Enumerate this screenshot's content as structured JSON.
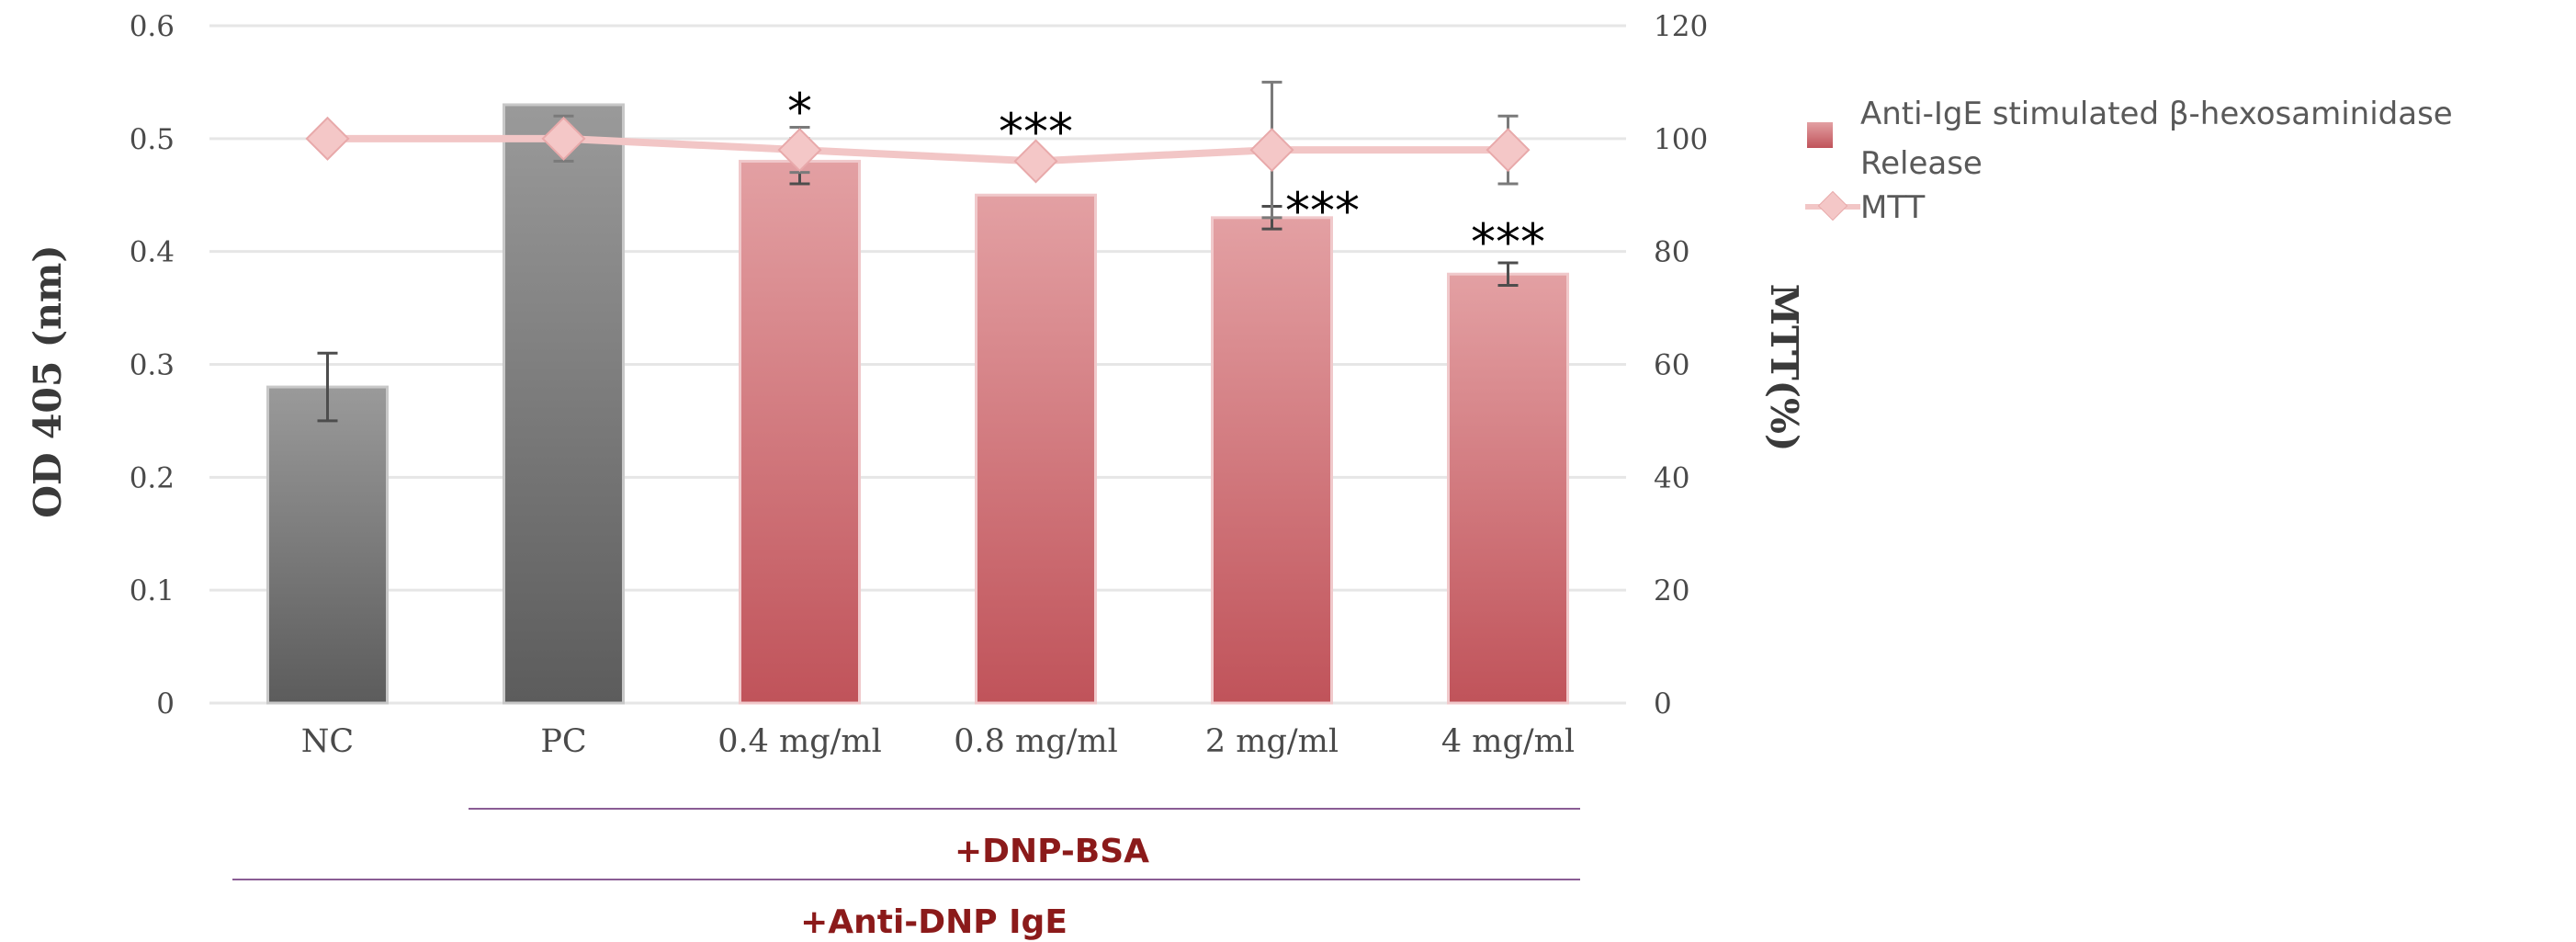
{
  "chart_data": {
    "type": "bar",
    "categories": [
      "NC",
      "PC",
      "0.4 mg/ml",
      "0.8 mg/ml",
      "2 mg/ml",
      "4 mg/ml"
    ],
    "series": [
      {
        "name": "Anti-IgE stimulated β-hexosaminidase Release",
        "type": "bar",
        "axis": "left",
        "values": [
          0.28,
          0.53,
          0.48,
          0.45,
          0.43,
          0.38
        ],
        "errors": [
          0.03,
          0.0,
          0.02,
          0.0,
          0.01,
          0.01
        ]
      },
      {
        "name": "MTT",
        "type": "line",
        "axis": "right",
        "values": [
          100,
          100,
          98,
          96,
          98,
          98
        ],
        "errors": [
          0,
          4,
          4,
          0,
          12,
          6
        ]
      }
    ],
    "ylabel": "OD 405 (nm)",
    "y2label": "MTT(%)",
    "ylim": [
      0,
      0.6
    ],
    "yticks": [
      0,
      0.1,
      0.2,
      0.3,
      0.4,
      0.5,
      0.6
    ],
    "ytick_labels": [
      "0",
      "0.1",
      "0.2",
      "0.3",
      "0.4",
      "0.5",
      "0.6"
    ],
    "y2lim": [
      0,
      120
    ],
    "y2ticks": [
      0,
      20,
      40,
      60,
      80,
      100,
      120
    ],
    "y2tick_labels": [
      "0",
      "20",
      "40",
      "60",
      "80",
      "100",
      "120"
    ],
    "significance": [
      "",
      "",
      "*",
      "***",
      "***",
      "***"
    ],
    "groups": [
      {
        "label": "+DNP-BSA",
        "from": 1,
        "to": 5
      },
      {
        "label": "+Anti-DNP IgE",
        "from": 0,
        "to": 5
      }
    ],
    "legend_lines": [
      "Anti-IgE stimulated β-hexosaminidase",
      "Release",
      "MTT"
    ],
    "legend": "right",
    "grid": true,
    "colors": {
      "grey_top": "#9a9a9a",
      "grey_bottom": "#5c5c5c",
      "red_top": "#e3a0a3",
      "red_bottom": "#c0535a",
      "line": "#f2c6c6",
      "marker": "#f4c7c7",
      "marker_stroke": "#e8a9aa",
      "grid": "#e6e6e6",
      "group_line": "#8a5d94"
    }
  }
}
